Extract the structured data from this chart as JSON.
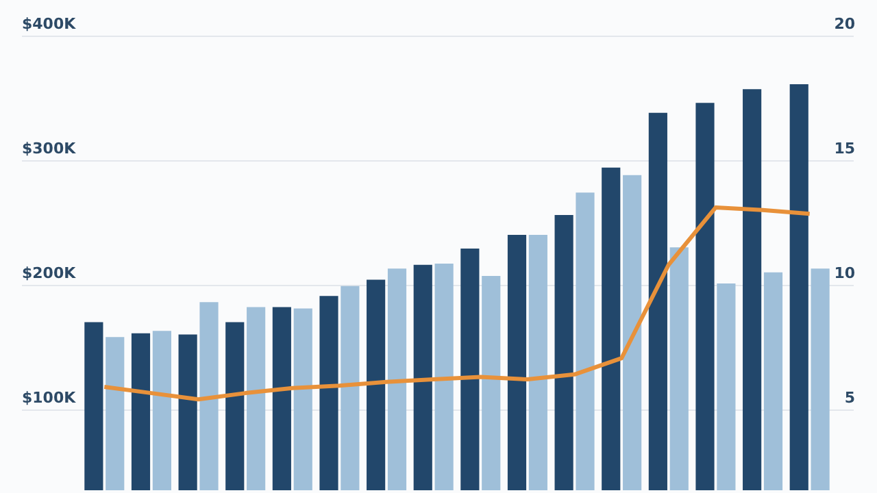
{
  "chart_data": {
    "type": "bar",
    "categories": [
      null,
      null,
      null,
      null,
      null,
      null,
      null,
      null,
      null,
      null,
      null,
      null,
      null,
      null,
      null,
      null
    ],
    "series": [
      {
        "color": "#22476b",
        "values": [
          170000,
          161000,
          160000,
          170000,
          182000,
          191000,
          204000,
          216000,
          229000,
          240000,
          256000,
          294000,
          338000,
          346000,
          357000,
          361000
        ]
      },
      {
        "color": "#9fbfd9",
        "values": [
          158000,
          163000,
          186000,
          182000,
          181000,
          199000,
          213000,
          217000,
          207000,
          240000,
          274000,
          288000,
          230000,
          201000,
          210000,
          213000
        ]
      },
      {
        "type": "line",
        "axis": "y2",
        "color": "#e8913a",
        "values": [
          5.9,
          5.65,
          5.4,
          5.65,
          5.85,
          5.95,
          6.1,
          6.2,
          6.3,
          6.2,
          6.4,
          7.05,
          10.8,
          13.1,
          13.0,
          12.85
        ]
      }
    ],
    "ylim": [
      35000,
      400000
    ],
    "yticks": [
      {
        "value": 100000,
        "label": "$100K"
      },
      {
        "value": 200000,
        "label": "$200K"
      },
      {
        "value": 300000,
        "label": "$300K"
      },
      {
        "value": 400000,
        "label": "$400K"
      }
    ],
    "y2lim": [
      1.75,
      20
    ],
    "y2ticks": [
      5,
      10,
      15,
      20
    ],
    "grid": "y",
    "legend": false,
    "marker": "none",
    "line_style": "solid"
  }
}
